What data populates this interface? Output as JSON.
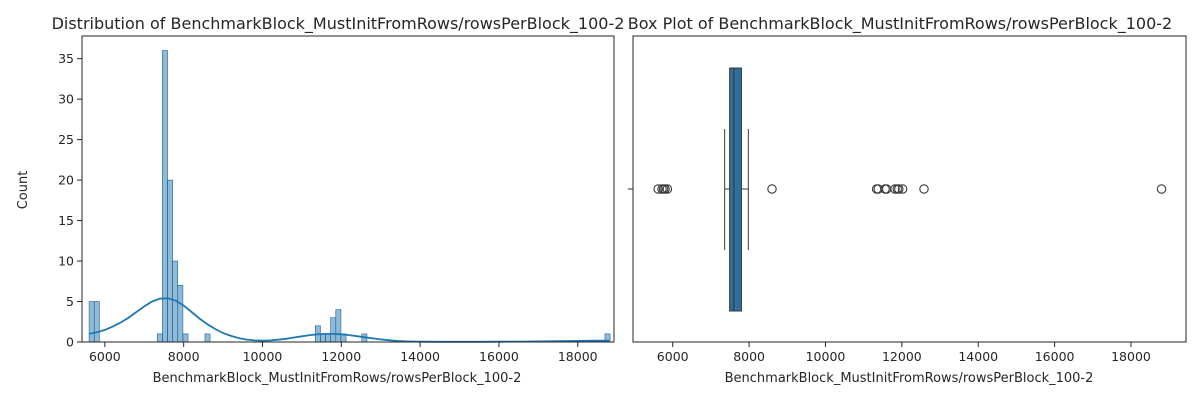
{
  "chart_data": [
    {
      "type": "histogram",
      "title": "Distribution of BenchmarkBlock_MustInitFromRows/rowsPerBlock_100-2",
      "xlabel": "BenchmarkBlock_MustInitFromRows/rowsPerBlock_100-2",
      "ylabel": "Count",
      "xlim": [
        5420,
        18920
      ],
      "ylim": [
        0,
        37.8
      ],
      "xticks": [
        6000,
        8000,
        10000,
        12000,
        14000,
        16000,
        18000
      ],
      "yticks": [
        0,
        5,
        10,
        15,
        20,
        25,
        30,
        35
      ],
      "bins": [
        {
          "x0": 5600,
          "x1": 5730,
          "count": 5
        },
        {
          "x0": 5730,
          "x1": 5860,
          "count": 5
        },
        {
          "x0": 7330,
          "x1": 7460,
          "count": 1
        },
        {
          "x0": 7460,
          "x1": 7590,
          "count": 36
        },
        {
          "x0": 7590,
          "x1": 7720,
          "count": 20
        },
        {
          "x0": 7720,
          "x1": 7850,
          "count": 10
        },
        {
          "x0": 7850,
          "x1": 7980,
          "count": 7
        },
        {
          "x0": 7980,
          "x1": 8110,
          "count": 1
        },
        {
          "x0": 8540,
          "x1": 8670,
          "count": 1
        },
        {
          "x0": 11340,
          "x1": 11470,
          "count": 2
        },
        {
          "x0": 11470,
          "x1": 11600,
          "count": 1
        },
        {
          "x0": 11600,
          "x1": 11730,
          "count": 1
        },
        {
          "x0": 11730,
          "x1": 11860,
          "count": 3
        },
        {
          "x0": 11860,
          "x1": 11990,
          "count": 4
        },
        {
          "x0": 11990,
          "x1": 12120,
          "count": 1
        },
        {
          "x0": 12520,
          "x1": 12650,
          "count": 1
        },
        {
          "x0": 18690,
          "x1": 18820,
          "count": 1
        }
      ],
      "kde": {
        "x": [
          5600,
          5800,
          6000,
          6200,
          6400,
          6600,
          6800,
          7000,
          7200,
          7400,
          7600,
          7800,
          8000,
          8200,
          8400,
          8600,
          8800,
          9000,
          9200,
          9400,
          9600,
          9800,
          10000,
          10200,
          10400,
          10600,
          10800,
          11000,
          11200,
          11400,
          11600,
          11800,
          12000,
          12200,
          12400,
          12600,
          12800,
          13000,
          13200,
          13400,
          13600,
          13800,
          14000,
          14500,
          15000,
          15500,
          16000,
          16500,
          17000,
          17500,
          18000,
          18400,
          18600,
          18800
        ],
        "y": [
          1.0,
          1.2,
          1.5,
          1.9,
          2.4,
          3.0,
          3.7,
          4.4,
          5.0,
          5.35,
          5.4,
          5.1,
          4.5,
          3.7,
          2.9,
          2.2,
          1.6,
          1.1,
          0.75,
          0.48,
          0.3,
          0.2,
          0.17,
          0.2,
          0.28,
          0.4,
          0.55,
          0.7,
          0.85,
          0.95,
          1.0,
          1.0,
          0.95,
          0.85,
          0.72,
          0.58,
          0.44,
          0.32,
          0.22,
          0.14,
          0.09,
          0.06,
          0.04,
          0.03,
          0.03,
          0.03,
          0.04,
          0.05,
          0.07,
          0.1,
          0.13,
          0.16,
          0.17,
          0.17
        ]
      }
    },
    {
      "type": "box",
      "title": "Box Plot of BenchmarkBlock_MustInitFromRows/rowsPerBlock_100-2",
      "xlabel": "BenchmarkBlock_MustInitFromRows/rowsPerBlock_100-2",
      "xlim": [
        4960,
        19440
      ],
      "xticks": [
        6000,
        8000,
        10000,
        12000,
        14000,
        16000,
        18000
      ],
      "whisker_low": 7360,
      "q1": 7490,
      "median": 7600,
      "q3": 7800,
      "whisker_high": 7980,
      "outliers": [
        5620,
        5720,
        5760,
        5800,
        5860,
        8600,
        11340,
        11380,
        11560,
        11600,
        11820,
        11880,
        11920,
        12020,
        12580,
        18800
      ]
    }
  ]
}
